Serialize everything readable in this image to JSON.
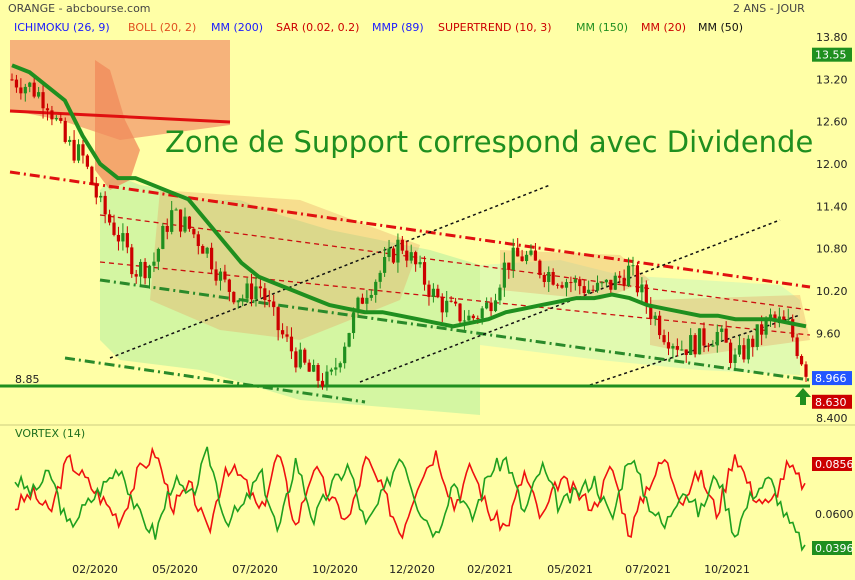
{
  "header": {
    "source": "ORANGE - abcbourse.com",
    "timeframe": "2 ANS - JOUR",
    "indicators": [
      {
        "label": "ICHIMOKU (26, 9)",
        "color": "#1a1aff"
      },
      {
        "label": "BOLL (20, 2)",
        "color": "#e05020"
      },
      {
        "label": "MM (200)",
        "color": "#1a1aff"
      },
      {
        "label": "SAR (0.02, 0.2)",
        "color": "#cc0000"
      },
      {
        "label": "MMP (89)",
        "color": "#1a1aff"
      },
      {
        "label": "SUPERTREND (10, 3)",
        "color": "#cc0000"
      },
      {
        "label": "MM (150)",
        "color": "#1f8f1f"
      },
      {
        "label": "MM (20)",
        "color": "#cc0000"
      },
      {
        "label": "MM (50)",
        "color": "#111111"
      }
    ]
  },
  "annotation": "Zone de Support correspond avec Dividende",
  "support_label": "8.85",
  "colors": {
    "background": "#ffffa6",
    "bull": "#1f8f1f",
    "bear": "#cc0000",
    "ma150": "#1f8f1f",
    "channel": "#e01010",
    "ichimoku_cloud_green": "#9ff0a0",
    "bollinger_fill": "#f08040",
    "badge_blue": "#2255ff",
    "badge_red": "#cc0000",
    "badge_green": "#1f8f1f"
  },
  "chart_data": [
    {
      "type": "line",
      "title": "ORANGE - abcbourse.com",
      "x_tick_labels": [
        "02/2020",
        "05/2020",
        "07/2020",
        "10/2020",
        "12/2020",
        "02/2021",
        "05/2021",
        "07/2021",
        "10/2021"
      ],
      "y_tick_labels": [
        "13.80",
        "13.20",
        "12.60",
        "12.00",
        "11.40",
        "10.80",
        "10.20",
        "9.60",
        "8.400"
      ],
      "ylim": [
        8.4,
        13.9
      ],
      "series": [
        {
          "name": "",
          "values": [
            13.2,
            13.1,
            12.9,
            12.3,
            12.1,
            11.4,
            11.0,
            10.5,
            10.6,
            11.3,
            11.1,
            10.8,
            10.3,
            10.1,
            10.3,
            9.7,
            9.3,
            9.0,
            8.9,
            9.6,
            10.2,
            10.5,
            10.9,
            10.5,
            10.1,
            9.9,
            9.8,
            10.0,
            10.6,
            10.7,
            10.5,
            10.4,
            10.3,
            10.2,
            10.3,
            10.5,
            10.0,
            9.6,
            9.4,
            9.5,
            9.6,
            9.2,
            9.5,
            9.8,
            9.7,
            9.1
          ]
        },
        {
          "name": "MM (150)",
          "values": [
            13.4,
            13.3,
            13.1,
            12.9,
            12.4,
            12.0,
            11.8,
            11.8,
            11.7,
            11.6,
            11.5,
            11.2,
            10.9,
            10.6,
            10.4,
            10.3,
            10.2,
            10.1,
            10.0,
            9.95,
            9.9,
            9.9,
            9.85,
            9.8,
            9.75,
            9.7,
            9.75,
            9.8,
            9.9,
            9.95,
            10.0,
            10.05,
            10.1,
            10.1,
            10.15,
            10.1,
            10.0,
            9.95,
            9.9,
            9.85,
            9.85,
            9.8,
            9.8,
            9.8,
            9.75,
            9.7
          ]
        }
      ],
      "support_level": 8.85,
      "price_labels": [
        {
          "value": "13.55",
          "color": "green"
        },
        {
          "value": "8.966",
          "color": "blue"
        },
        {
          "value": "8.630",
          "color": "red"
        }
      ]
    },
    {
      "type": "line",
      "title": "VORTEX (14)",
      "y_tick_labels": [
        "0.0600"
      ],
      "series": [
        {
          "name": "",
          "values": [
            0.9,
            1.0,
            0.85,
            1.25,
            1.1,
            0.95,
            0.8,
            1.15,
            1.3,
            0.9,
            1.05,
            0.7,
            1.2,
            1.1,
            0.85,
            1.3,
            0.75,
            1.2,
            0.95,
            0.8,
            1.25,
            1.0,
            0.7,
            1.1,
            1.3,
            0.9,
            1.2,
            0.85,
            0.75,
            1.15,
            0.8,
            1.1,
            1.0,
            0.9,
            1.2,
            0.7,
            1.05,
            1.25,
            0.95,
            1.15,
            0.85,
            1.3,
            1.0,
            0.9,
            1.2,
            1.05
          ]
        },
        {
          "name": "",
          "values": [
            1.1,
            1.0,
            1.15,
            0.75,
            0.9,
            1.05,
            1.2,
            0.85,
            0.7,
            1.1,
            0.95,
            1.3,
            0.8,
            0.9,
            1.15,
            0.7,
            1.25,
            0.8,
            1.05,
            1.2,
            0.75,
            1.0,
            1.3,
            0.9,
            0.7,
            1.1,
            0.8,
            1.15,
            1.25,
            0.85,
            1.2,
            0.9,
            1.0,
            1.1,
            0.8,
            1.3,
            0.95,
            0.75,
            1.05,
            0.85,
            1.15,
            0.7,
            1.0,
            1.1,
            0.8,
            0.6
          ]
        }
      ],
      "value_labels": [
        {
          "value": "0.0856",
          "color": "red"
        },
        {
          "value": "0.0396",
          "color": "green"
        }
      ]
    }
  ]
}
